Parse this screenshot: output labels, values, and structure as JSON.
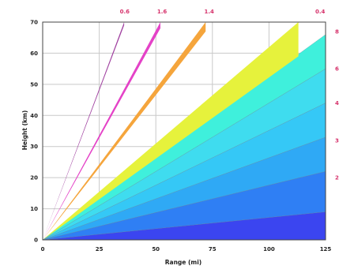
{
  "chart_data": {
    "type": "area",
    "title": "",
    "xlabel": "Range (mi)",
    "ylabel": "Height (km)",
    "xlim": [
      0,
      125
    ],
    "ylim": [
      0,
      70
    ],
    "x_ticks": [
      "0",
      "25",
      "50",
      "75",
      "100",
      "125"
    ],
    "y_ticks": [
      "0",
      "10",
      "20",
      "30",
      "40",
      "50",
      "60",
      "70"
    ],
    "grid": true,
    "bands": [
      {
        "label": "",
        "color": "#3b45f0",
        "end_range": 125,
        "lower_height": 0,
        "upper_height": 9
      },
      {
        "label": "",
        "color": "#2f7ff4",
        "end_range": 125,
        "lower_height": 9,
        "upper_height": 22
      },
      {
        "label": "",
        "color": "#2fa9f5",
        "end_range": 125,
        "lower_height": 22,
        "upper_height": 33
      },
      {
        "label": "",
        "color": "#35c8f6",
        "end_range": 125,
        "lower_height": 33,
        "upper_height": 44
      },
      {
        "label": "",
        "color": "#3fdcef",
        "end_range": 125,
        "lower_height": 44,
        "upper_height": 55
      },
      {
        "label": "",
        "color": "#3ff0dc",
        "end_range": 125,
        "lower_height": 55,
        "upper_height": 66
      },
      {
        "label": "0.4",
        "color": "#e6f23c",
        "end_range": 113,
        "lower_height": 59,
        "upper_height": 70
      },
      {
        "label": "1.4",
        "color": "#f5a53c",
        "end_range": 72,
        "lower_height": 67,
        "upper_height": 70
      },
      {
        "label": "1.6",
        "color": "#e442c7",
        "end_range": 52,
        "lower_height": 68,
        "upper_height": 70
      },
      {
        "label": "0.6",
        "color": "#a040a0",
        "end_range": 36,
        "lower_height": 69,
        "upper_height": 70
      }
    ],
    "side_labels": [
      {
        "label": "8",
        "height": 67
      },
      {
        "label": "6",
        "height": 55
      },
      {
        "label": "4",
        "height": 44
      },
      {
        "label": "3",
        "height": 32
      },
      {
        "label": "2",
        "height": 20
      }
    ]
  }
}
